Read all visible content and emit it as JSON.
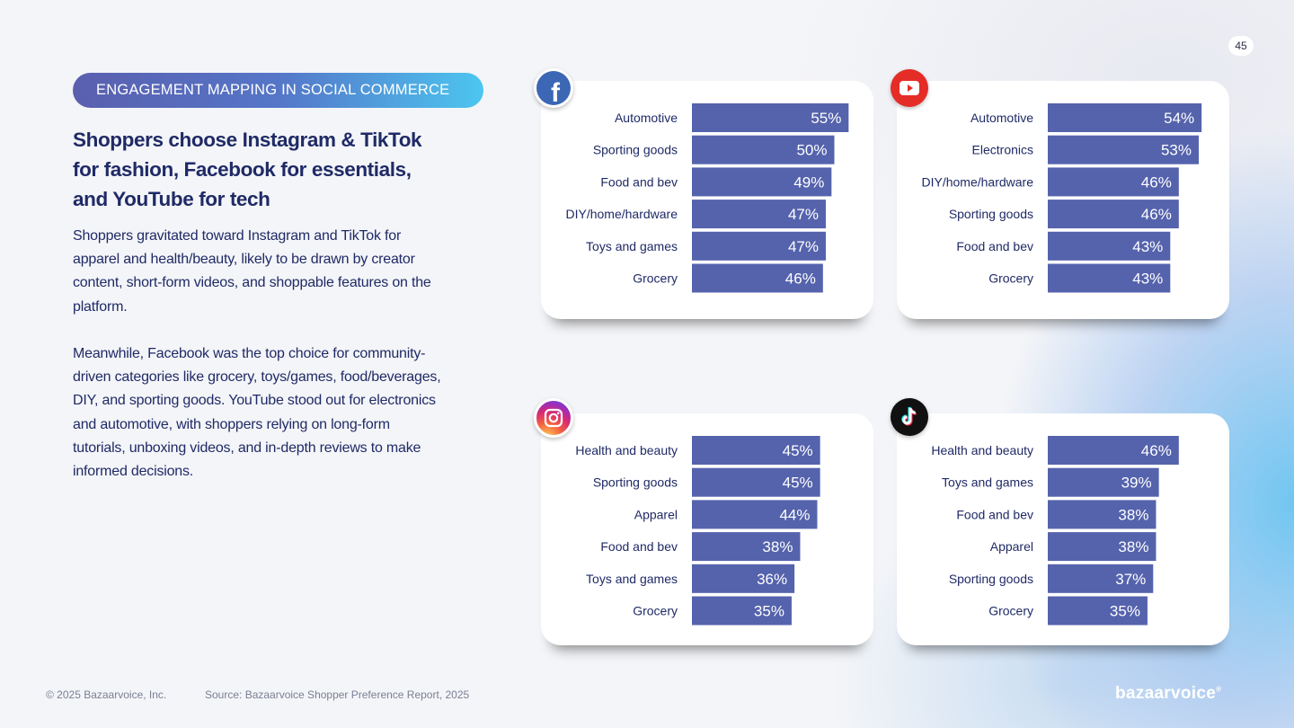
{
  "page_number": "45",
  "tag": "ENGAGEMENT MAPPING IN SOCIAL COMMERCE",
  "headline": "Shoppers choose Instagram & TikTok for fashion, Facebook for essentials, and YouTube for tech",
  "paragraph1": "Shoppers gravitated toward Instagram and TikTok for apparel and health/beauty, likely to be drawn by creator content, short-form videos, and shoppable features on the platform.",
  "paragraph2": "Meanwhile, Facebook was the top choice for community-driven categories like grocery, toys/games, food/beverages, DIY, and sporting goods. YouTube stood out for electronics and automotive, with shoppers relying on long-form tutorials, unboxing videos, and in-depth reviews to make informed decisions.",
  "footer": {
    "copyright": "© 2025 Bazaarvoice, Inc.",
    "source": "Source: Bazaarvoice Shopper Preference Report, 2025",
    "brand": "bazaarvoice",
    "brand_mark": "®"
  },
  "colors": {
    "bar": "#5563ad",
    "accent": "#4cc6f0"
  },
  "chart_data": [
    {
      "type": "bar",
      "orientation": "horizontal",
      "platform_icon": "facebook-icon",
      "categories": [
        "Automotive",
        "Sporting goods",
        "Food and bev",
        "DIY/home/hardware",
        "Toys and games",
        "Grocery"
      ],
      "values": [
        55,
        50,
        49,
        47,
        47,
        46
      ],
      "labels": [
        "55%",
        "50%",
        "49%",
        "47%",
        "47%",
        "46%"
      ]
    },
    {
      "type": "bar",
      "orientation": "horizontal",
      "platform_icon": "youtube-icon",
      "categories": [
        "Automotive",
        "Electronics",
        "DIY/home/hardware",
        "Sporting goods",
        "Food and bev",
        "Grocery"
      ],
      "values": [
        54,
        53,
        46,
        46,
        43,
        43
      ],
      "labels": [
        "54%",
        "53%",
        "46%",
        "46%",
        "43%",
        "43%"
      ]
    },
    {
      "type": "bar",
      "orientation": "horizontal",
      "platform_icon": "instagram-icon",
      "categories": [
        "Health and beauty",
        "Sporting goods",
        "Apparel",
        "Food and bev",
        "Toys and games",
        "Grocery"
      ],
      "values": [
        45,
        45,
        44,
        38,
        36,
        35
      ],
      "labels": [
        "45%",
        "45%",
        "44%",
        "38%",
        "36%",
        "35%"
      ]
    },
    {
      "type": "bar",
      "orientation": "horizontal",
      "platform_icon": "tiktok-icon",
      "categories": [
        "Health and beauty",
        "Toys and games",
        "Food and bev",
        "Apparel",
        "Sporting goods",
        "Grocery"
      ],
      "values": [
        46,
        39,
        38,
        38,
        37,
        35
      ],
      "labels": [
        "46%",
        "39%",
        "38%",
        "38%",
        "37%",
        "35%"
      ]
    }
  ]
}
